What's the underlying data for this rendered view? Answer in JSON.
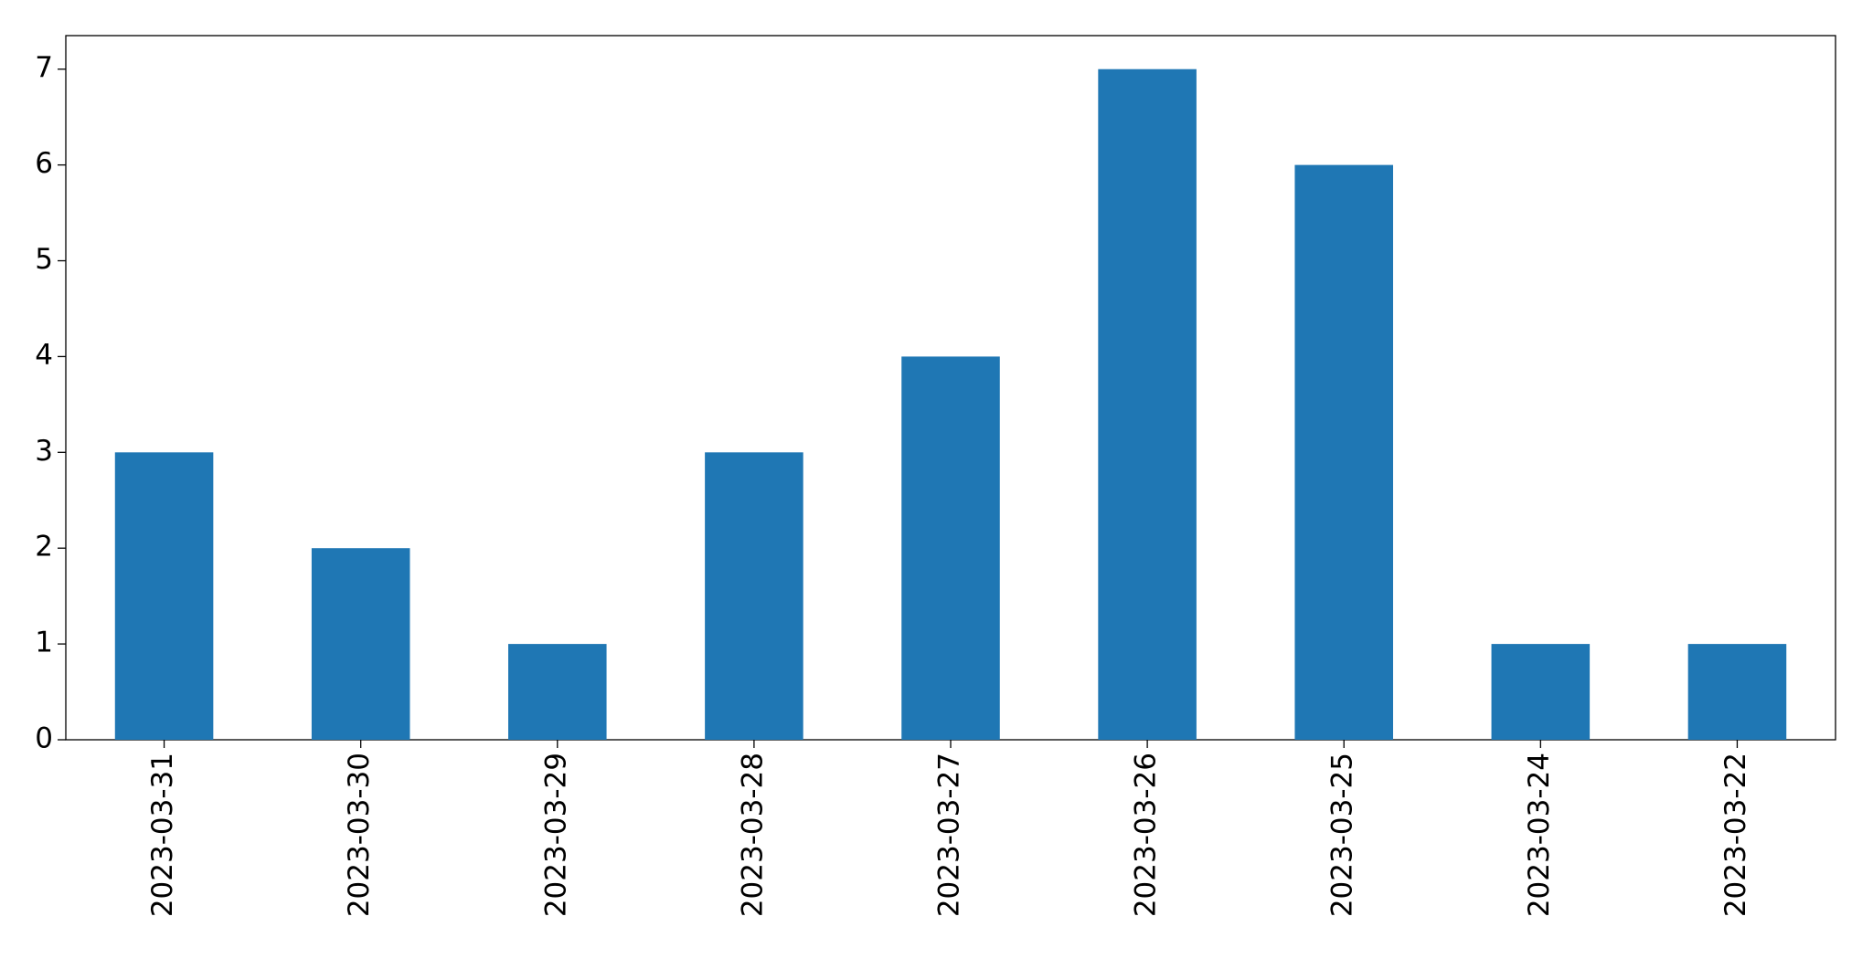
{
  "chart_data": {
    "type": "bar",
    "categories": [
      "2023-03-31",
      "2023-03-30",
      "2023-03-29",
      "2023-03-28",
      "2023-03-27",
      "2023-03-26",
      "2023-03-25",
      "2023-03-24",
      "2023-03-22"
    ],
    "values": [
      3,
      2,
      1,
      3,
      4,
      7,
      6,
      1,
      1
    ],
    "color": "#1f77b4",
    "ylim": [
      0,
      7.35
    ],
    "yticks": [
      0,
      1,
      2,
      3,
      4,
      5,
      6,
      7
    ],
    "grid": false
  }
}
